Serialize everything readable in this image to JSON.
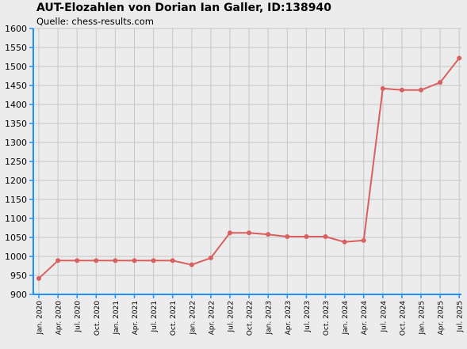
{
  "colors": {
    "background": "#ececec",
    "grid": "#c6c6c6",
    "axis": "#1e90ff",
    "series": "#d96060"
  },
  "chart_data": {
    "type": "line",
    "title": "AUT-Elozahlen von Dorian Ian Galler, ID:138940",
    "subtitle": "Quelle: chess-results.com",
    "xlabel": "",
    "ylabel": "",
    "ylim": [
      900,
      1600
    ],
    "yticks": [
      900,
      950,
      1000,
      1050,
      1100,
      1150,
      1200,
      1250,
      1300,
      1350,
      1400,
      1450,
      1500,
      1550,
      1600
    ],
    "grid": true,
    "legend": "none",
    "x": [
      "Jan. 2020",
      "Apr. 2020",
      "Jul. 2020",
      "Oct. 2020",
      "Jan. 2021",
      "Apr. 2021",
      "Jul. 2021",
      "Oct. 2021",
      "Jan. 2022",
      "Apr. 2022",
      "Jul. 2022",
      "Oct. 2022",
      "Jan. 2023",
      "Apr. 2023",
      "Jul. 2023",
      "Oct. 2023",
      "Jan. 2024",
      "Apr. 2024",
      "Jul. 2024",
      "Oct. 2024",
      "Jan. 2025",
      "Apr. 2025",
      "Jul. 2025"
    ],
    "series": [
      {
        "values": [
          942,
          989,
          989,
          989,
          989,
          989,
          989,
          989,
          978,
          996,
          1062,
          1062,
          1058,
          1052,
          1052,
          1052,
          1038,
          1042,
          1442,
          1438,
          1438,
          1458,
          1522
        ]
      }
    ]
  }
}
